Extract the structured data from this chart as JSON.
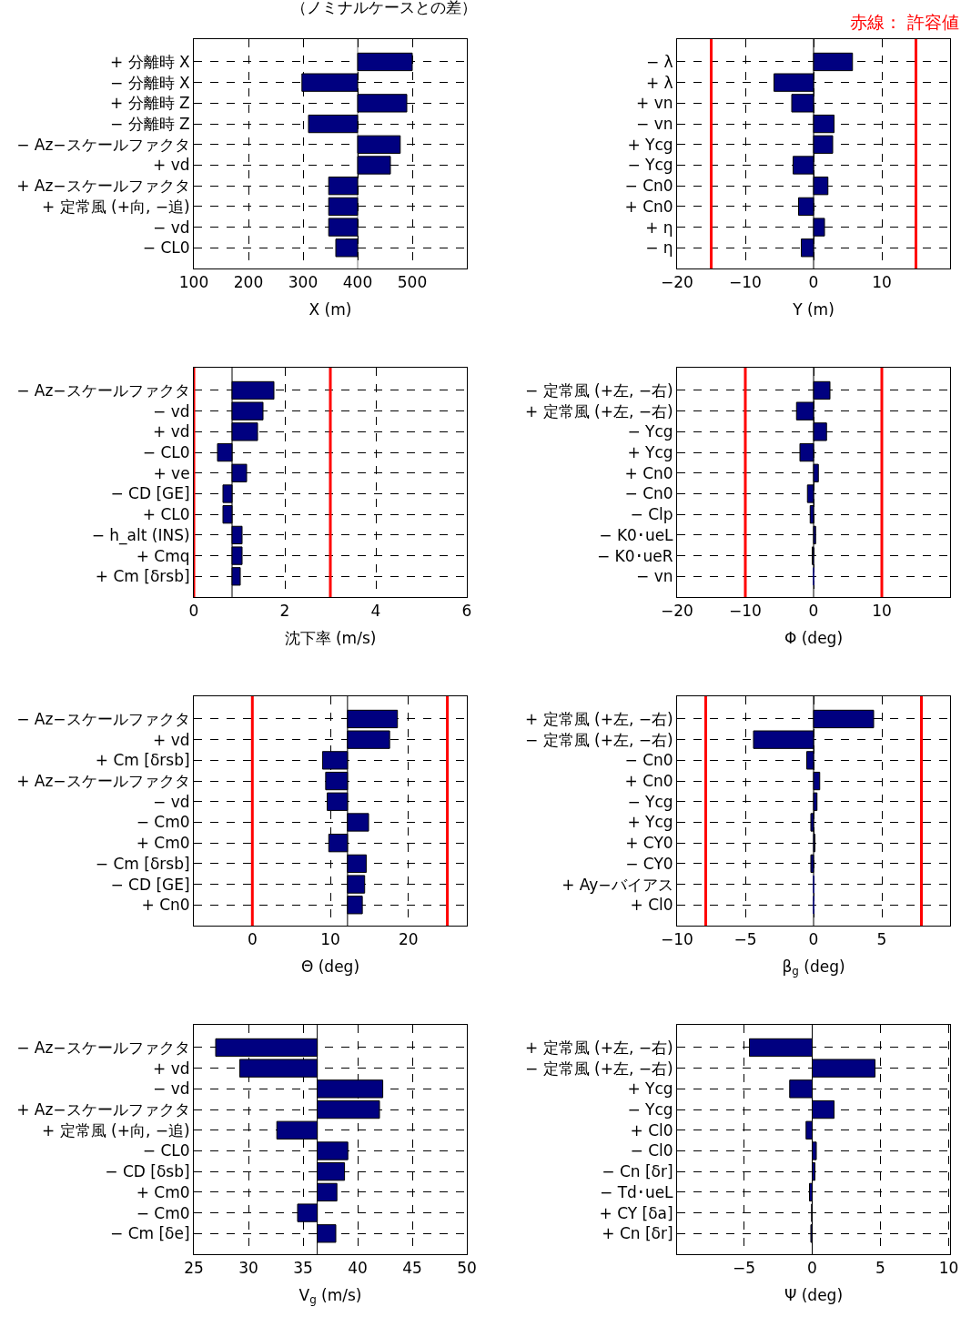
{
  "chart_data": [
    {
      "type": "bar",
      "orientation": "horizontal",
      "title": "（ノミナルケースとの差）",
      "xlabel": "X (m)",
      "color": "#000080",
      "grid": true,
      "categories": [
        "+ 分離時 X",
        "− 分離時 X",
        "+ 分離時 Z",
        "− 分離時 Z",
        "− Az−スケールファクタ",
        "+ vd",
        "+ Az−スケールファクタ",
        "+ 定常風 (+向, −追)",
        "− vd",
        "− CL0"
      ],
      "base": [
        400,
        400,
        400,
        400,
        400,
        400,
        400,
        400,
        400,
        400
      ],
      "values": [
        100,
        -102,
        90,
        -90,
        78,
        60,
        -53,
        -53,
        -53,
        -40
      ],
      "xlim": [
        100,
        600
      ],
      "xticks": [
        100,
        200,
        300,
        400,
        500
      ],
      "ref_lines": [
        {
          "axis": "x",
          "value": 400,
          "color": "#808080"
        }
      ]
    },
    {
      "type": "bar",
      "orientation": "horizontal",
      "xlabel": "Y (m)",
      "color": "#000080",
      "grid": true,
      "annotations": [
        "赤線： 許容値"
      ],
      "categories": [
        "− λ",
        "+ λ",
        "+ vn",
        "− vn",
        "+ Ycg",
        "− Ycg",
        "− Cn0",
        "+ Cn0",
        "+ η",
        "− η"
      ],
      "base": [
        0,
        0,
        0,
        0,
        0,
        0,
        0,
        0,
        0,
        0
      ],
      "values": [
        5.7,
        -5.8,
        -3.2,
        3.0,
        2.8,
        -3.0,
        2.1,
        -2.2,
        1.6,
        -1.8
      ],
      "xlim": [
        -20,
        20
      ],
      "xticks": [
        -20,
        -10,
        0,
        10
      ],
      "ref_lines": [
        {
          "axis": "x",
          "value": 0,
          "color": "#000000"
        },
        {
          "axis": "x",
          "value": -15,
          "color": "#ff0000"
        },
        {
          "axis": "x",
          "value": 15,
          "color": "#ff0000"
        }
      ]
    },
    {
      "type": "bar",
      "orientation": "horizontal",
      "xlabel": "沈下率 (m/s)",
      "color": "#000080",
      "grid": true,
      "categories": [
        "− Az−スケールファクタ",
        "− vd",
        "+ vd",
        "− CL0",
        "+ ve",
        "− CD [GE]",
        "+ CL0",
        "− h_alt (INS)",
        "+ Cmq",
        "+ Cm [δrsb]"
      ],
      "base": [
        0.84,
        0.84,
        0.84,
        0.84,
        0.84,
        0.84,
        0.84,
        0.84,
        0.84,
        0.84
      ],
      "values": [
        0.92,
        0.68,
        0.56,
        -0.32,
        0.32,
        -0.2,
        -0.2,
        0.22,
        0.22,
        0.18
      ],
      "xlim": [
        0,
        6
      ],
      "xticks": [
        0,
        2,
        4,
        6
      ],
      "ref_lines": [
        {
          "axis": "x",
          "value": 0.84,
          "color": "#000000"
        },
        {
          "axis": "x",
          "value": 0,
          "color": "#ff0000"
        },
        {
          "axis": "x",
          "value": 3,
          "color": "#ff0000"
        }
      ]
    },
    {
      "type": "bar",
      "orientation": "horizontal",
      "xlabel": "Φ (deg)",
      "color": "#000080",
      "grid": true,
      "categories": [
        "− 定常風 (+左, −右)",
        "+ 定常風 (+左, −右)",
        "− Ycg",
        "+ Ycg",
        "+ Cn0",
        "− Cn0",
        "− Clp",
        "− K0･ueL",
        "− K0･ueR",
        "− vn"
      ],
      "base": [
        0,
        0,
        0,
        0,
        0,
        0,
        0,
        0,
        0,
        0
      ],
      "values": [
        2.4,
        -2.5,
        1.9,
        -2.0,
        0.7,
        -0.9,
        -0.5,
        0.3,
        -0.2,
        0
      ],
      "xlim": [
        -20,
        20
      ],
      "xticks": [
        -20,
        -10,
        0,
        10
      ],
      "ref_lines": [
        {
          "axis": "x",
          "value": 0,
          "color": "#000000"
        },
        {
          "axis": "x",
          "value": -10,
          "color": "#ff0000"
        },
        {
          "axis": "x",
          "value": 10,
          "color": "#ff0000"
        }
      ]
    },
    {
      "type": "bar",
      "orientation": "horizontal",
      "xlabel": "Θ (deg)",
      "color": "#000080",
      "grid": true,
      "categories": [
        "− Az−スケールファクタ",
        "+ vd",
        "+ Cm [δrsb]",
        "+ Az−スケールファクタ",
        "− vd",
        "− Cm0",
        "+ Cm0",
        "− Cm [δrsb]",
        "− CD [GE]",
        "+ Cn0"
      ],
      "base": [
        12.2,
        12.2,
        12.2,
        12.2,
        12.2,
        12.2,
        12.2,
        12.2,
        12.2,
        12.2
      ],
      "values": [
        6.4,
        5.4,
        -3.2,
        -2.8,
        -2.6,
        2.7,
        -2.4,
        2.4,
        2.2,
        1.9
      ],
      "xlim": [
        -7.5,
        27.5
      ],
      "xticks": [
        0,
        10,
        20
      ],
      "ref_lines": [
        {
          "axis": "x",
          "value": 12.2,
          "color": "#000000"
        },
        {
          "axis": "x",
          "value": 0,
          "color": "#ff0000"
        },
        {
          "axis": "x",
          "value": 25,
          "color": "#ff0000"
        }
      ]
    },
    {
      "type": "bar",
      "orientation": "horizontal",
      "xlabel": "β$_{g}$ (deg)",
      "color": "#000080",
      "grid": true,
      "categories": [
        "+ 定常風 (+左, −右)",
        "− 定常風 (+左, −右)",
        "− Cn0",
        "+ Cn0",
        "− Ycg",
        "+ Ycg",
        "+ CY0",
        "− CY0",
        "+ Ay−バイアス",
        "+ Cl0"
      ],
      "base": [
        0,
        0,
        0,
        0,
        0,
        0,
        0,
        0,
        0,
        0
      ],
      "values": [
        4.4,
        -4.4,
        -0.5,
        0.45,
        0.25,
        -0.2,
        0.1,
        -0.2,
        0,
        0
      ],
      "xlim": [
        -10,
        10
      ],
      "xticks": [
        -10,
        -5,
        0,
        5
      ],
      "ref_lines": [
        {
          "axis": "x",
          "value": 0,
          "color": "#000000"
        },
        {
          "axis": "x",
          "value": -7.9,
          "color": "#ff0000"
        },
        {
          "axis": "x",
          "value": 7.9,
          "color": "#ff0000"
        }
      ]
    },
    {
      "type": "bar",
      "orientation": "horizontal",
      "xlabel": "V$_{g}$ (m/s)",
      "color": "#000080",
      "grid": true,
      "categories": [
        "− Az−スケールファクタ",
        "+ vd",
        "− vd",
        "+ Az−スケールファクタ",
        "+ 定常風 (+向, −追)",
        "− CL0",
        "− CD [δsb]",
        "+ Cm0",
        "− Cm0",
        "− Cm [δe]"
      ],
      "base": [
        36.3,
        36.3,
        36.3,
        36.3,
        36.3,
        36.3,
        36.3,
        36.3,
        36.3,
        36.3
      ],
      "values": [
        -9.3,
        -7.1,
        6.0,
        5.7,
        -3.7,
        2.8,
        2.5,
        1.8,
        -1.8,
        1.7
      ],
      "xlim": [
        25,
        50
      ],
      "xticks": [
        25,
        30,
        35,
        40,
        45,
        50
      ],
      "ref_lines": [
        {
          "axis": "x",
          "value": 36.3,
          "color": "#000000"
        }
      ]
    },
    {
      "type": "bar",
      "orientation": "horizontal",
      "xlabel": "Ψ (deg)",
      "color": "#000080",
      "grid": true,
      "categories": [
        "+ 定常風 (+左, −右)",
        "− 定常風 (+左, −右)",
        "+ Ycg",
        "− Ycg",
        "+ Cl0",
        "− Cl0",
        "− Cn [δr]",
        "− Td･ueL",
        "+ CY [δa]",
        "+ Cn [δr]"
      ],
      "base": [
        0,
        0,
        0,
        0,
        0,
        0,
        0,
        0,
        0,
        0
      ],
      "values": [
        -4.6,
        4.6,
        -1.65,
        1.6,
        -0.45,
        0.3,
        0.2,
        -0.2,
        -0.05,
        -0.1
      ],
      "xlim": [
        -9.9,
        10.1
      ],
      "xticks": [
        -5,
        0,
        5,
        10
      ],
      "ref_lines": [
        {
          "axis": "x",
          "value": 0,
          "color": "#000000"
        }
      ]
    }
  ]
}
